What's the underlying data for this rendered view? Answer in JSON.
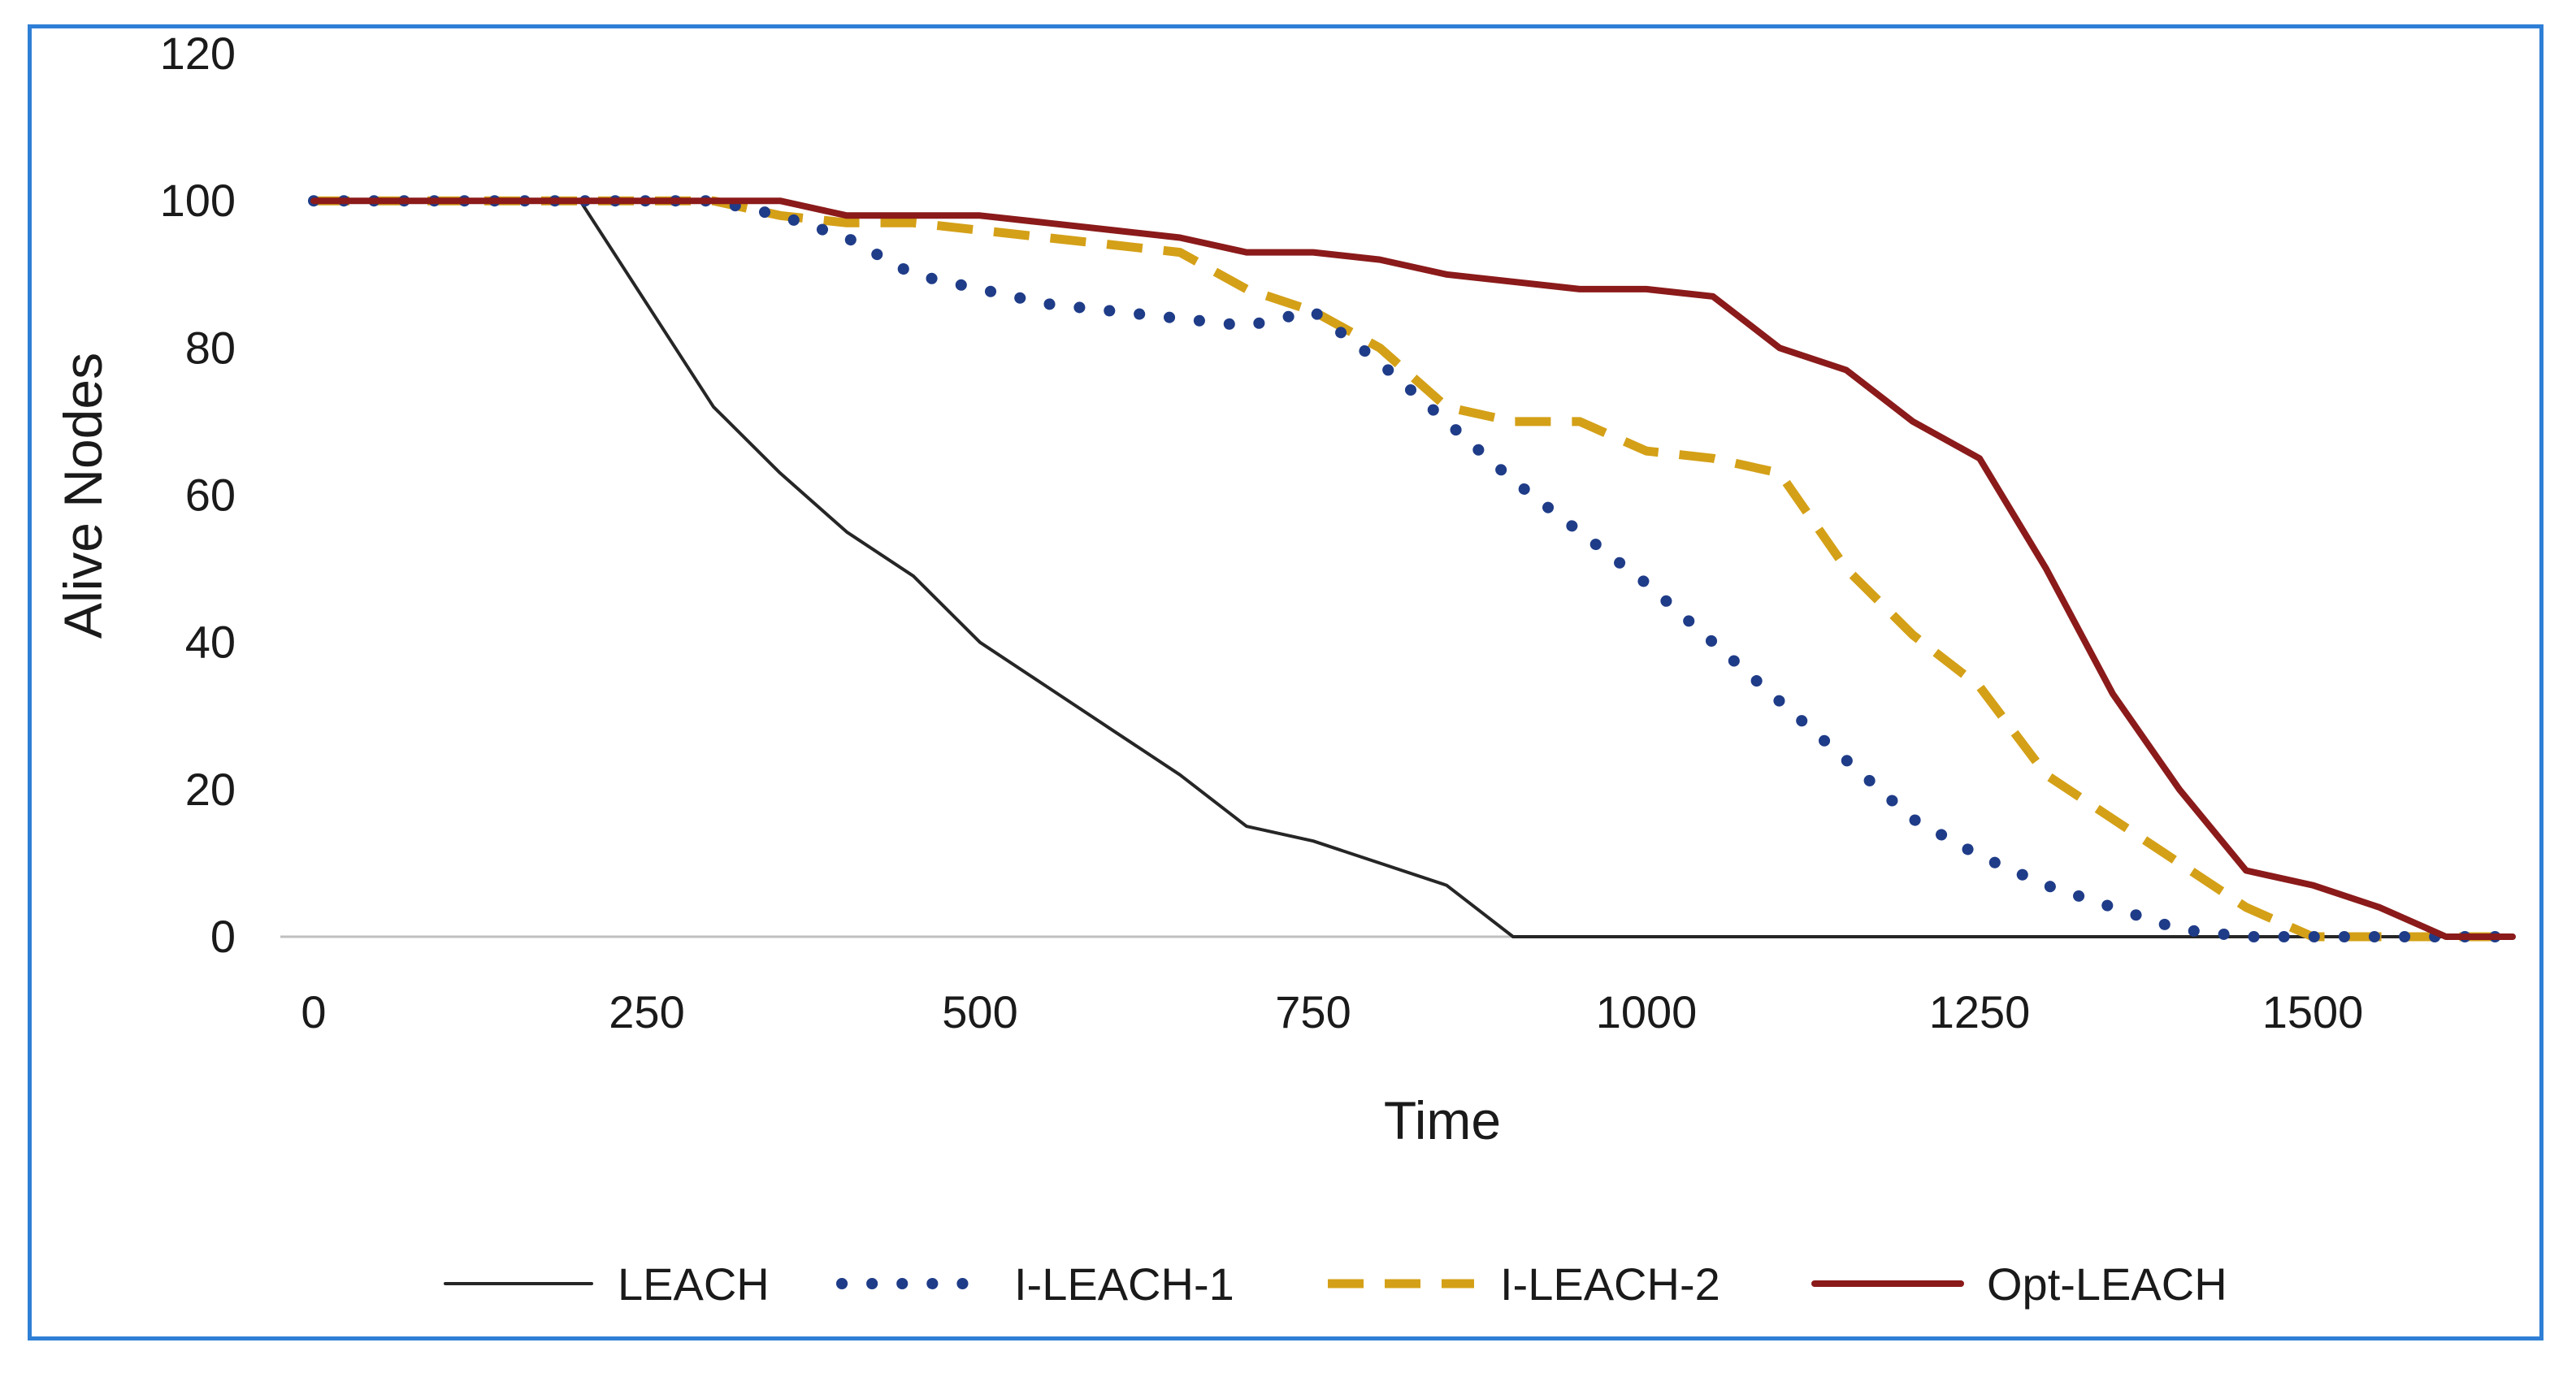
{
  "chart_data": {
    "type": "line",
    "title": "",
    "xlabel": "Time",
    "ylabel": "Alive Nodes",
    "xlim": [
      0,
      1650
    ],
    "ylim": [
      0,
      120
    ],
    "x_ticks": [
      "0",
      "250",
      "500",
      "750",
      "1000",
      "1250",
      "1500"
    ],
    "y_ticks": [
      "0",
      "20",
      "40",
      "60",
      "80",
      "100",
      "120"
    ],
    "grid": false,
    "legend_position": "bottom",
    "series": [
      {
        "name": "LEACH",
        "color": "#262626",
        "style": "solid-thin",
        "points": [
          [
            0,
            100
          ],
          [
            200,
            100
          ],
          [
            250,
            86
          ],
          [
            300,
            72
          ],
          [
            350,
            63
          ],
          [
            400,
            55
          ],
          [
            450,
            49
          ],
          [
            500,
            40
          ],
          [
            550,
            34
          ],
          [
            600,
            28
          ],
          [
            650,
            22
          ],
          [
            700,
            15
          ],
          [
            750,
            13
          ],
          [
            800,
            10
          ],
          [
            850,
            7
          ],
          [
            900,
            0
          ],
          [
            1650,
            0
          ]
        ]
      },
      {
        "name": "I-LEACH-1",
        "color": "#1f3c88",
        "style": "dotted",
        "points": [
          [
            0,
            100
          ],
          [
            300,
            100
          ],
          [
            350,
            98
          ],
          [
            400,
            95
          ],
          [
            450,
            90
          ],
          [
            500,
            88
          ],
          [
            550,
            86
          ],
          [
            600,
            85
          ],
          [
            650,
            84
          ],
          [
            700,
            83
          ],
          [
            750,
            85
          ],
          [
            800,
            78
          ],
          [
            850,
            70
          ],
          [
            900,
            62
          ],
          [
            950,
            55
          ],
          [
            1000,
            48
          ],
          [
            1050,
            40
          ],
          [
            1100,
            32
          ],
          [
            1150,
            24
          ],
          [
            1200,
            16
          ],
          [
            1250,
            11
          ],
          [
            1300,
            7
          ],
          [
            1350,
            4
          ],
          [
            1400,
            1
          ],
          [
            1450,
            0
          ],
          [
            1650,
            0
          ]
        ]
      },
      {
        "name": "I-LEACH-2",
        "color": "#d4a017",
        "style": "dashed",
        "points": [
          [
            0,
            100
          ],
          [
            300,
            100
          ],
          [
            350,
            98
          ],
          [
            400,
            97
          ],
          [
            450,
            97
          ],
          [
            500,
            96
          ],
          [
            550,
            95
          ],
          [
            600,
            94
          ],
          [
            650,
            93
          ],
          [
            700,
            88
          ],
          [
            750,
            85
          ],
          [
            800,
            80
          ],
          [
            850,
            72
          ],
          [
            900,
            70
          ],
          [
            950,
            70
          ],
          [
            1000,
            66
          ],
          [
            1050,
            65
          ],
          [
            1100,
            63
          ],
          [
            1150,
            50
          ],
          [
            1200,
            41
          ],
          [
            1250,
            34
          ],
          [
            1300,
            22
          ],
          [
            1350,
            16
          ],
          [
            1400,
            10
          ],
          [
            1450,
            4
          ],
          [
            1500,
            0
          ],
          [
            1650,
            0
          ]
        ]
      },
      {
        "name": "Opt-LEACH",
        "color": "#8b1a1a",
        "style": "solid",
        "points": [
          [
            0,
            100
          ],
          [
            350,
            100
          ],
          [
            400,
            98
          ],
          [
            450,
            98
          ],
          [
            500,
            98
          ],
          [
            550,
            97
          ],
          [
            600,
            96
          ],
          [
            650,
            95
          ],
          [
            700,
            93
          ],
          [
            750,
            93
          ],
          [
            800,
            92
          ],
          [
            850,
            90
          ],
          [
            900,
            89
          ],
          [
            950,
            88
          ],
          [
            1000,
            88
          ],
          [
            1050,
            87
          ],
          [
            1100,
            80
          ],
          [
            1150,
            77
          ],
          [
            1200,
            70
          ],
          [
            1250,
            65
          ],
          [
            1300,
            50
          ],
          [
            1350,
            33
          ],
          [
            1400,
            20
          ],
          [
            1450,
            9
          ],
          [
            1500,
            7
          ],
          [
            1550,
            4
          ],
          [
            1600,
            0
          ],
          [
            1650,
            0
          ]
        ]
      }
    ]
  }
}
